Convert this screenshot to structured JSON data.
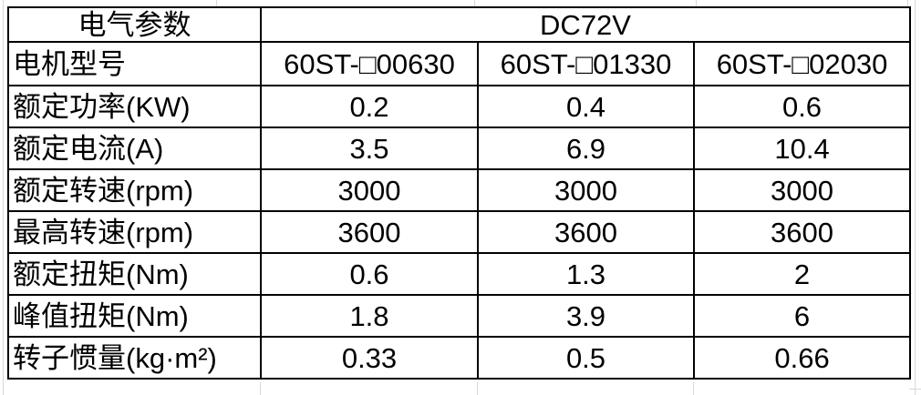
{
  "table": {
    "header": {
      "param_label": "电气参数",
      "voltage": "DC72V"
    },
    "rows": [
      {
        "label": "电机型号",
        "values": [
          "60ST-□00630",
          "60ST-□01330",
          "60ST-□02030"
        ]
      },
      {
        "label": "额定功率(KW)",
        "values": [
          "0.2",
          "0.4",
          "0.6"
        ]
      },
      {
        "label": "额定电流(A)",
        "values": [
          "3.5",
          "6.9",
          "10.4"
        ]
      },
      {
        "label": "额定转速(rpm)",
        "values": [
          "3000",
          "3000",
          "3000"
        ]
      },
      {
        "label": "最高转速(rpm)",
        "values": [
          "3600",
          "3600",
          "3600"
        ]
      },
      {
        "label": "额定扭矩(Nm)",
        "values": [
          "0.6",
          "1.3",
          "2"
        ]
      },
      {
        "label": "峰值扭矩(Nm)",
        "values": [
          "1.8",
          "3.9",
          "6"
        ]
      },
      {
        "label": "转子惯量(kg·m²)",
        "values": [
          "0.33",
          "0.5",
          "0.66"
        ]
      }
    ]
  },
  "colors": {
    "table_border": "#000000",
    "gridline": "#d8d8d8",
    "text": "#000000",
    "background": "#ffffff"
  }
}
